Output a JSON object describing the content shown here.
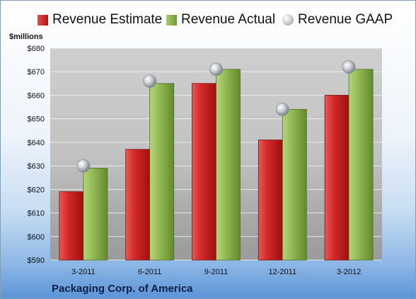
{
  "chart_data": {
    "type": "bar",
    "unit_label": "$millions",
    "source_label": "Packaging Corp. of America",
    "categories": [
      "3-2011",
      "6-2011",
      "9-2011",
      "12-2011",
      "3-2012"
    ],
    "series": [
      {
        "name": "Revenue Estimate",
        "type": "bar",
        "color": "#c41e1e",
        "values": [
          619,
          637,
          665,
          641,
          660
        ]
      },
      {
        "name": "Revenue Actual",
        "type": "bar",
        "color": "#8db350",
        "values": [
          629,
          665,
          671,
          654,
          671
        ]
      },
      {
        "name": "Revenue GAAP",
        "type": "scatter",
        "color": "#b8bcc0",
        "values": [
          630,
          666,
          671,
          654,
          672
        ]
      }
    ],
    "yticks": [
      "$590",
      "$600",
      "$610",
      "$620",
      "$630",
      "$640",
      "$650",
      "$660",
      "$670",
      "$680"
    ],
    "ylim": [
      590,
      680
    ],
    "grid": true,
    "legend": "top"
  }
}
